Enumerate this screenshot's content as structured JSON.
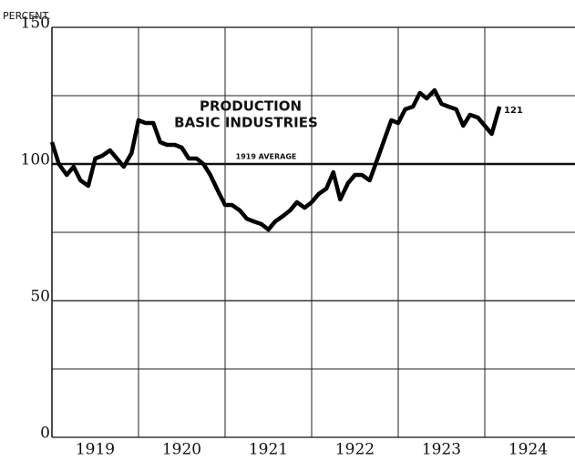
{
  "chart_data": {
    "type": "line",
    "ylabel": "PERCENT.",
    "annotations": [
      "PRODUCTION",
      "BASIC INDUSTRIES",
      "1919 AVERAGE",
      "121"
    ],
    "categories": [
      "1919",
      "1920",
      "1921",
      "1922",
      "1923",
      "1924"
    ],
    "x": [
      1919,
      1919.08,
      1919.17,
      1919.25,
      1919.33,
      1919.42,
      1919.5,
      1919.58,
      1919.67,
      1919.75,
      1919.83,
      1919.92,
      1920,
      1920.08,
      1920.17,
      1920.25,
      1920.33,
      1920.42,
      1920.5,
      1920.58,
      1920.67,
      1920.75,
      1920.83,
      1920.92,
      1921,
      1921.08,
      1921.17,
      1921.25,
      1921.33,
      1921.42,
      1921.5,
      1921.58,
      1921.67,
      1921.75,
      1921.83,
      1921.92,
      1922,
      1922.08,
      1922.17,
      1922.25,
      1922.33,
      1922.42,
      1922.5,
      1922.58,
      1922.67,
      1922.75,
      1922.83,
      1922.92,
      1923,
      1923.08,
      1923.17,
      1923.25,
      1923.33,
      1923.42,
      1923.5,
      1923.58,
      1923.67,
      1923.75,
      1923.83,
      1923.92,
      1924,
      1924.08,
      1924.17
    ],
    "series": [
      {
        "name": "PRODUCTION BASIC INDUSTRIES",
        "color": "#000000",
        "values": [
          108,
          100,
          96,
          99,
          94,
          92,
          102,
          103,
          105,
          102,
          99,
          104,
          116,
          115,
          115,
          108,
          107,
          107,
          106,
          102,
          102,
          100,
          96,
          90,
          85,
          85,
          83,
          80,
          79,
          78,
          76,
          79,
          81,
          83,
          86,
          84,
          86,
          89,
          91,
          97,
          87,
          93,
          96,
          96,
          94,
          101,
          108,
          116,
          115,
          120,
          121,
          126,
          124,
          127,
          122,
          121,
          120,
          114,
          118,
          117,
          114,
          111,
          121
        ]
      }
    ],
    "xlim": [
      1919,
      1925
    ],
    "ylim": [
      0,
      150
    ],
    "yticks": [
      0,
      50,
      100,
      150
    ],
    "minor_yticks": [
      25,
      75,
      125
    ],
    "grid": true
  }
}
